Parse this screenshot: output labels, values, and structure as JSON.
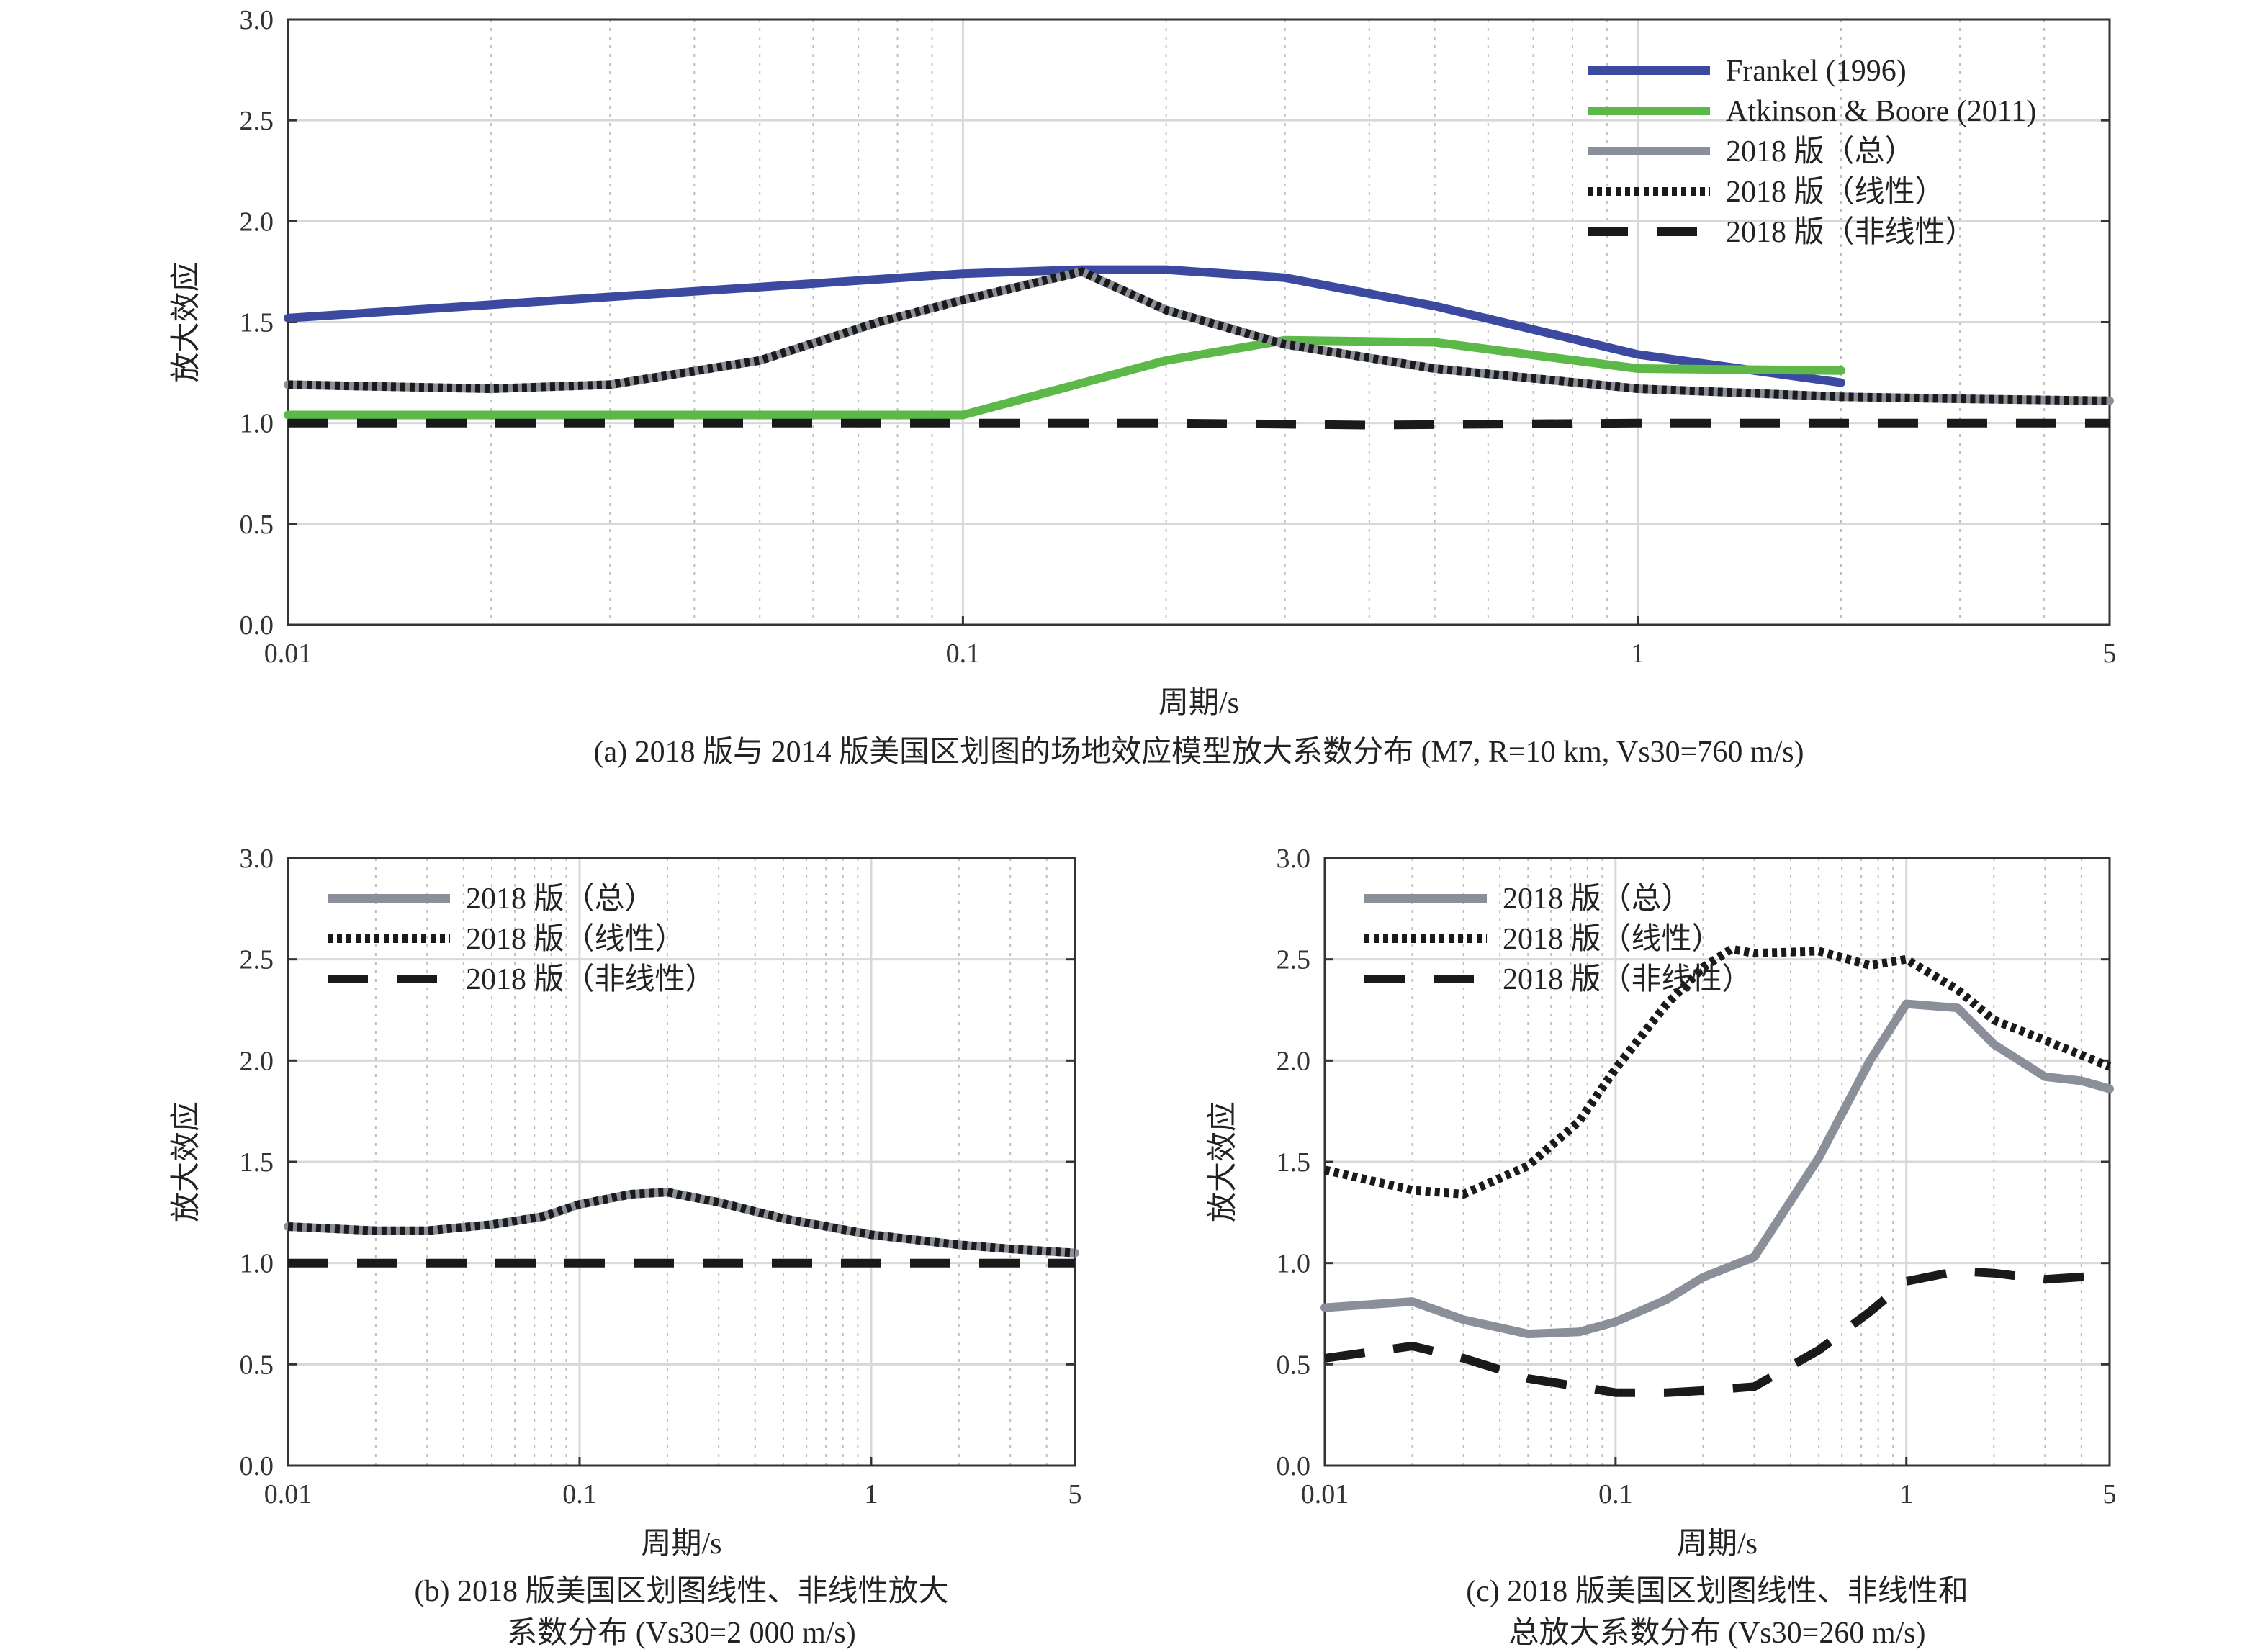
{
  "chart_data": [
    {
      "id": "a",
      "type": "line",
      "xscale": "log",
      "xlim": [
        0.01,
        5
      ],
      "ylim": [
        0.0,
        3.0
      ],
      "xlabel": "周期/s",
      "ylabel": "放大效应",
      "grid": true,
      "legend_position": "top-right",
      "x_ticks": [
        "0.01",
        "0.1",
        "1",
        "5"
      ],
      "y_ticks": [
        "0.0",
        "0.5",
        "1.0",
        "1.5",
        "2.0",
        "2.5",
        "3.0"
      ],
      "caption": [
        "(a) 2018 版与 2014 版美国区划图的场地效应模型放大系数分布 (M7, R=10 km, Vs30=760 m/s)"
      ],
      "series": [
        {
          "name": "Frankel (1996)",
          "color": "#3b4aa0",
          "style": "solid",
          "x": [
            0.01,
            0.1,
            0.15,
            0.2,
            0.3,
            0.5,
            1.0,
            2.0
          ],
          "y": [
            1.52,
            1.74,
            1.76,
            1.76,
            1.72,
            1.58,
            1.34,
            1.2
          ]
        },
        {
          "name": "Atkinson & Boore (2011)",
          "color": "#5cb849",
          "style": "solid",
          "x": [
            0.01,
            0.1,
            0.2,
            0.3,
            0.5,
            1.0,
            2.0
          ],
          "y": [
            1.04,
            1.04,
            1.31,
            1.41,
            1.4,
            1.27,
            1.26
          ]
        },
        {
          "name": "2018 版（总）",
          "color": "#8a8f9a",
          "style": "solid",
          "x": [
            0.01,
            0.02,
            0.03,
            0.05,
            0.075,
            0.1,
            0.15,
            0.2,
            0.3,
            0.5,
            1.0,
            2.0,
            3.0,
            5.0
          ],
          "y": [
            1.19,
            1.17,
            1.19,
            1.31,
            1.5,
            1.61,
            1.75,
            1.56,
            1.39,
            1.27,
            1.17,
            1.13,
            1.12,
            1.11
          ]
        },
        {
          "name": "2018 版（线性）",
          "color": "#1a1a1a",
          "style": "dotted",
          "x": [
            0.01,
            0.02,
            0.03,
            0.05,
            0.075,
            0.1,
            0.15,
            0.2,
            0.3,
            0.5,
            1.0,
            2.0,
            3.0,
            5.0
          ],
          "y": [
            1.19,
            1.17,
            1.19,
            1.31,
            1.5,
            1.61,
            1.75,
            1.56,
            1.39,
            1.27,
            1.17,
            1.13,
            1.12,
            1.11
          ]
        },
        {
          "name": "2018 版（非线性）",
          "color": "#1a1a1a",
          "style": "dashed",
          "x": [
            0.01,
            0.1,
            0.2,
            0.4,
            1.0,
            5.0
          ],
          "y": [
            1.0,
            1.0,
            1.0,
            0.99,
            1.0,
            1.0
          ]
        }
      ]
    },
    {
      "id": "b",
      "type": "line",
      "xscale": "log",
      "xlim": [
        0.01,
        5
      ],
      "ylim": [
        0.0,
        3.0
      ],
      "xlabel": "周期/s",
      "ylabel": "放大效应",
      "grid": true,
      "legend_position": "top-left",
      "x_ticks": [
        "0.01",
        "0.1",
        "1",
        "5"
      ],
      "y_ticks": [
        "0.0",
        "0.5",
        "1.0",
        "1.5",
        "2.0",
        "2.5",
        "3.0"
      ],
      "caption": [
        "(b) 2018 版美国区划图线性、非线性放大",
        "系数分布 (Vs30=2 000 m/s)"
      ],
      "series": [
        {
          "name": "2018 版（总）",
          "color": "#8a8f9a",
          "style": "solid",
          "x": [
            0.01,
            0.02,
            0.03,
            0.05,
            0.075,
            0.1,
            0.15,
            0.2,
            0.3,
            0.5,
            1.0,
            2.0,
            3.0,
            5.0
          ],
          "y": [
            1.18,
            1.16,
            1.16,
            1.19,
            1.23,
            1.29,
            1.34,
            1.35,
            1.3,
            1.22,
            1.14,
            1.09,
            1.07,
            1.05
          ]
        },
        {
          "name": "2018 版（线性）",
          "color": "#1a1a1a",
          "style": "dotted",
          "x": [
            0.01,
            0.02,
            0.03,
            0.05,
            0.075,
            0.1,
            0.15,
            0.2,
            0.3,
            0.5,
            1.0,
            2.0,
            3.0,
            5.0
          ],
          "y": [
            1.18,
            1.16,
            1.16,
            1.19,
            1.23,
            1.29,
            1.34,
            1.35,
            1.3,
            1.22,
            1.14,
            1.09,
            1.07,
            1.05
          ]
        },
        {
          "name": "2018 版（非线性）",
          "color": "#1a1a1a",
          "style": "dashed",
          "x": [
            0.01,
            5.0
          ],
          "y": [
            1.0,
            1.0
          ]
        }
      ]
    },
    {
      "id": "c",
      "type": "line",
      "xscale": "log",
      "xlim": [
        0.01,
        5
      ],
      "ylim": [
        0.0,
        3.0
      ],
      "xlabel": "周期/s",
      "ylabel": "放大效应",
      "grid": true,
      "legend_position": "top-left",
      "x_ticks": [
        "0.01",
        "0.1",
        "1",
        "5"
      ],
      "y_ticks": [
        "0.0",
        "0.5",
        "1.0",
        "1.5",
        "2.0",
        "2.5",
        "3.0"
      ],
      "caption": [
        "(c) 2018 版美国区划图线性、非线性和",
        "总放大系数分布 (Vs30=260 m/s)"
      ],
      "series": [
        {
          "name": "2018 版（总）",
          "color": "#8a8f9a",
          "style": "solid",
          "x": [
            0.01,
            0.02,
            0.03,
            0.05,
            0.075,
            0.1,
            0.15,
            0.2,
            0.3,
            0.5,
            0.75,
            1.0,
            1.5,
            2.0,
            3.0,
            4.0,
            5.0
          ],
          "y": [
            0.78,
            0.81,
            0.72,
            0.65,
            0.66,
            0.71,
            0.82,
            0.93,
            1.03,
            1.52,
            2.0,
            2.28,
            2.26,
            2.08,
            1.92,
            1.9,
            1.86
          ]
        },
        {
          "name": "2018 版（线性）",
          "color": "#1a1a1a",
          "style": "dotted",
          "x": [
            0.01,
            0.02,
            0.03,
            0.05,
            0.075,
            0.1,
            0.15,
            0.2,
            0.25,
            0.3,
            0.5,
            0.75,
            1.0,
            1.5,
            2.0,
            3.0,
            5.0
          ],
          "y": [
            1.46,
            1.36,
            1.34,
            1.48,
            1.7,
            1.96,
            2.28,
            2.46,
            2.55,
            2.53,
            2.54,
            2.47,
            2.5,
            2.35,
            2.2,
            2.1,
            1.97
          ]
        },
        {
          "name": "2018 版（非线性）",
          "color": "#1a1a1a",
          "style": "dashed",
          "x": [
            0.01,
            0.02,
            0.03,
            0.05,
            0.075,
            0.1,
            0.15,
            0.2,
            0.3,
            0.5,
            0.75,
            1.0,
            1.5,
            2.0,
            3.0,
            5.0
          ],
          "y": [
            0.53,
            0.59,
            0.53,
            0.43,
            0.39,
            0.36,
            0.36,
            0.37,
            0.39,
            0.57,
            0.76,
            0.91,
            0.96,
            0.95,
            0.92,
            0.94
          ]
        }
      ]
    }
  ]
}
